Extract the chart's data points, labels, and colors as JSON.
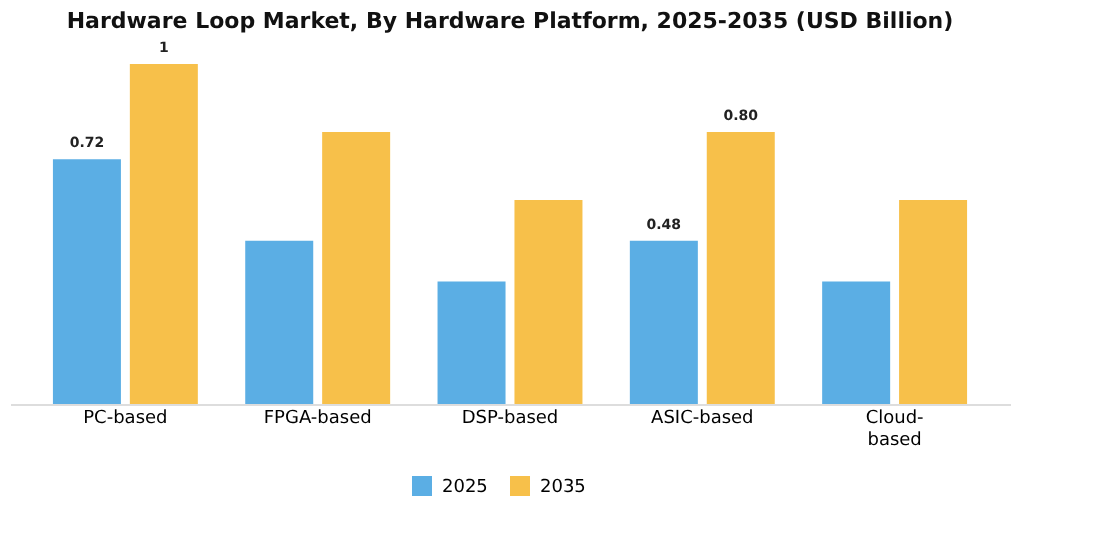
{
  "chart_data": {
    "type": "bar",
    "title": "Hardware Loop Market, By Hardware Platform, 2025-2035 (USD Billion)",
    "categories": [
      "PC-based",
      "FPGA-based",
      "DSP-based",
      "ASIC-based",
      "Cloud-based"
    ],
    "series": [
      {
        "name": "2025",
        "color": "#5baee4",
        "values": [
          0.72,
          0.48,
          0.36,
          0.48,
          0.36
        ],
        "value_labels": [
          "0.72",
          null,
          null,
          "0.48",
          null
        ]
      },
      {
        "name": "2035",
        "color": "#f7c04a",
        "values": [
          1,
          0.8,
          0.6,
          0.8,
          0.6
        ],
        "value_labels": [
          "1",
          null,
          null,
          "0.80",
          null
        ]
      }
    ],
    "legend": "bottom"
  }
}
